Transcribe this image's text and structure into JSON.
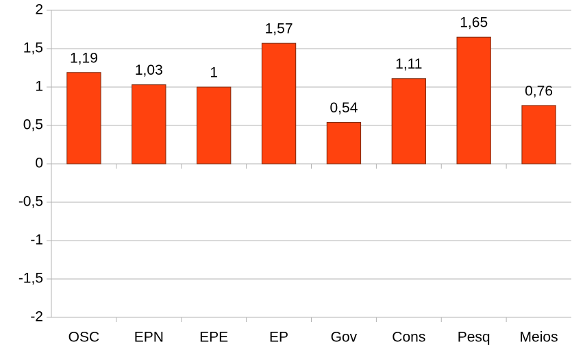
{
  "chart_data": {
    "type": "bar",
    "categories": [
      "OSC",
      "EPN",
      "EPE",
      "EP",
      "Gov",
      "Cons",
      "Pesq",
      "Meios"
    ],
    "values": [
      1.19,
      1.03,
      1,
      1.57,
      0.54,
      1.11,
      1.65,
      0.76
    ],
    "value_labels": [
      "1,19",
      "1,03",
      "1",
      "1,57",
      "0,54",
      "1,11",
      "1,65",
      "0,76"
    ],
    "color": "#ff420e",
    "ylim": [
      -2,
      2
    ],
    "yticks": [
      -2,
      {
        "value": -1.5,
        "label": "-1,5"
      },
      -1,
      {
        "value": -0.5,
        "label": "-0,5"
      },
      0,
      {
        "value": 0.5,
        "label": "0,5"
      },
      1,
      {
        "value": 1.5,
        "label": "1,5"
      },
      2
    ],
    "grid": true
  }
}
